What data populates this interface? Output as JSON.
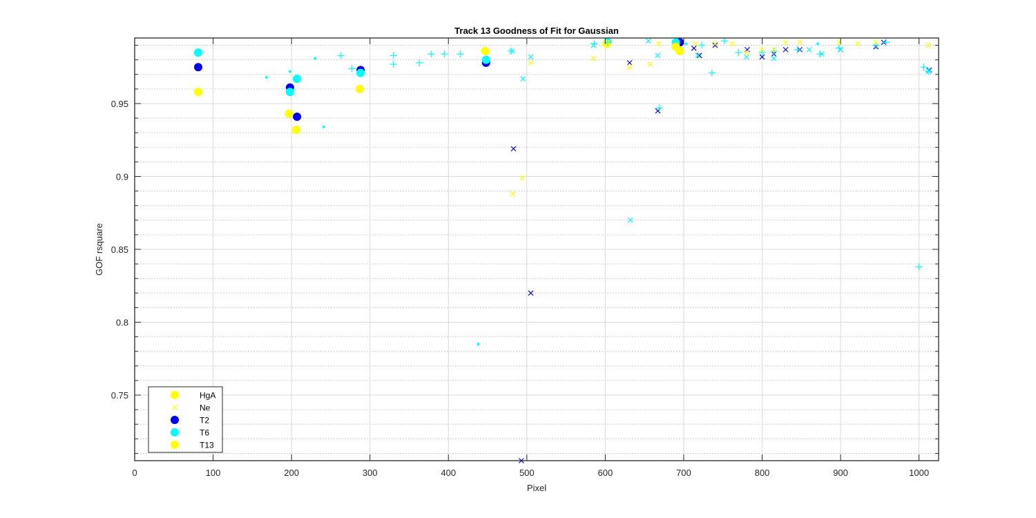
{
  "chart_data": {
    "type": "scatter",
    "title": "Track 13  Goodness of Fit for Gaussian",
    "xlabel": "Pixel",
    "ylabel": "GOF rsquare",
    "xlim": [
      0,
      1025
    ],
    "ylim": [
      0.705,
      0.995
    ],
    "xticks": [
      0,
      100,
      200,
      300,
      400,
      500,
      600,
      700,
      800,
      900,
      1000
    ],
    "yticks": [
      0.75,
      0.8,
      0.85,
      0.9,
      0.95
    ],
    "ytick_labels": [
      "0.75",
      "0.8",
      "0.85",
      "0.9",
      "0.95"
    ],
    "grid": "major and minor, dotted",
    "legend_position": "bottom-left",
    "series": [
      {
        "name": "HgA",
        "color": "#FFFF00",
        "marker": "filled-circle",
        "points": [
          [
            81,
            0.958
          ],
          [
            197,
            0.943
          ],
          [
            206,
            0.932
          ],
          [
            287,
            0.96
          ],
          [
            447,
            0.986
          ],
          [
            602,
            0.991
          ],
          [
            690,
            0.989
          ],
          [
            695,
            0.986
          ]
        ]
      },
      {
        "name": "Ne",
        "color": "#FFFF00",
        "marker": "x",
        "points": [
          [
            482,
            0.888
          ],
          [
            494,
            0.899
          ],
          [
            505,
            0.978
          ],
          [
            585,
            0.981
          ],
          [
            631,
            0.975
          ],
          [
            657,
            0.977
          ],
          [
            668,
            0.991
          ],
          [
            715,
            0.991
          ],
          [
            740,
            0.991
          ],
          [
            762,
            0.991
          ],
          [
            780,
            0.985
          ],
          [
            800,
            0.987
          ],
          [
            815,
            0.987
          ],
          [
            830,
            0.992
          ],
          [
            848,
            0.992
          ],
          [
            898,
            0.992
          ],
          [
            922,
            0.991
          ],
          [
            945,
            0.992
          ],
          [
            1012,
            0.99
          ]
        ]
      },
      {
        "name": "T2",
        "color": "#0000FF",
        "marker": "filled-circle",
        "points": [
          [
            81,
            0.975
          ],
          [
            198,
            0.961
          ],
          [
            207,
            0.941
          ],
          [
            288,
            0.973
          ],
          [
            448,
            0.978
          ],
          [
            695,
            0.992
          ]
        ]
      },
      {
        "name": "T6",
        "color": "#00FFFF",
        "marker": "filled-circle",
        "points": [
          [
            81,
            0.985
          ],
          [
            198,
            0.958
          ],
          [
            207,
            0.967
          ],
          [
            288,
            0.971
          ],
          [
            448,
            0.98
          ],
          [
            603,
            0.992
          ],
          [
            690,
            0.992
          ]
        ]
      },
      {
        "name": "T13",
        "color": "#FFFF00",
        "marker": "filled-circle",
        "points": [
          [
            81,
            0.958
          ],
          [
            197,
            0.943
          ],
          [
            206,
            0.932
          ],
          [
            287,
            0.96
          ],
          [
            447,
            0.986
          ],
          [
            602,
            0.991
          ],
          [
            690,
            0.989
          ],
          [
            695,
            0.986
          ]
        ]
      },
      {
        "name": "",
        "color": "#0000FF",
        "marker": "x",
        "points": [
          [
            483,
            0.919
          ],
          [
            493,
            0.705
          ],
          [
            505,
            0.82
          ],
          [
            631,
            0.978
          ],
          [
            667,
            0.945
          ],
          [
            713,
            0.988
          ],
          [
            720,
            0.983
          ],
          [
            740,
            0.99
          ],
          [
            781,
            0.987
          ],
          [
            800,
            0.982
          ],
          [
            815,
            0.984
          ],
          [
            830,
            0.987
          ],
          [
            848,
            0.987
          ],
          [
            900,
            0.987
          ],
          [
            945,
            0.989
          ],
          [
            955,
            0.992
          ],
          [
            1013,
            0.973
          ]
        ]
      },
      {
        "name": "",
        "color": "#00FFFF",
        "marker": "x",
        "points": [
          [
            481,
            0.986
          ],
          [
            495,
            0.967
          ],
          [
            505,
            0.982
          ],
          [
            585,
            0.99
          ],
          [
            632,
            0.87
          ],
          [
            655,
            0.993
          ],
          [
            667,
            0.983
          ],
          [
            718,
            0.983
          ],
          [
            780,
            0.982
          ],
          [
            815,
            0.981
          ],
          [
            860,
            0.987
          ],
          [
            876,
            0.984
          ],
          [
            900,
            0.987
          ],
          [
            1012,
            0.972
          ]
        ]
      },
      {
        "name": "",
        "color": "#00FFFF",
        "marker": "plus",
        "points": [
          [
            263,
            0.983
          ],
          [
            277,
            0.974
          ],
          [
            330,
            0.983
          ],
          [
            330,
            0.977
          ],
          [
            363,
            0.978
          ],
          [
            378,
            0.984
          ],
          [
            395,
            0.984
          ],
          [
            415,
            0.984
          ],
          [
            480,
            0.986
          ],
          [
            586,
            0.991
          ],
          [
            603,
            0.992
          ],
          [
            723,
            0.99
          ],
          [
            736,
            0.971
          ],
          [
            752,
            0.993
          ],
          [
            770,
            0.985
          ],
          [
            800,
            0.985
          ],
          [
            815,
            0.986
          ],
          [
            845,
            0.987
          ],
          [
            874,
            0.984
          ],
          [
            898,
            0.988
          ],
          [
            945,
            0.99
          ],
          [
            958,
            0.992
          ],
          [
            1000,
            0.838
          ],
          [
            1006,
            0.975
          ],
          [
            1012,
            0.972
          ],
          [
            669,
            0.947
          ]
        ]
      },
      {
        "name": "",
        "color": "#00FFFF",
        "marker": "dot",
        "points": [
          [
            168,
            0.968
          ],
          [
            198,
            0.972
          ],
          [
            230,
            0.981
          ],
          [
            241,
            0.934
          ],
          [
            438,
            0.785
          ],
          [
            703,
            0.991
          ],
          [
            871,
            0.991
          ]
        ]
      }
    ],
    "legend": [
      "HgA",
      "Ne",
      "T2",
      "T6",
      "T13"
    ]
  }
}
